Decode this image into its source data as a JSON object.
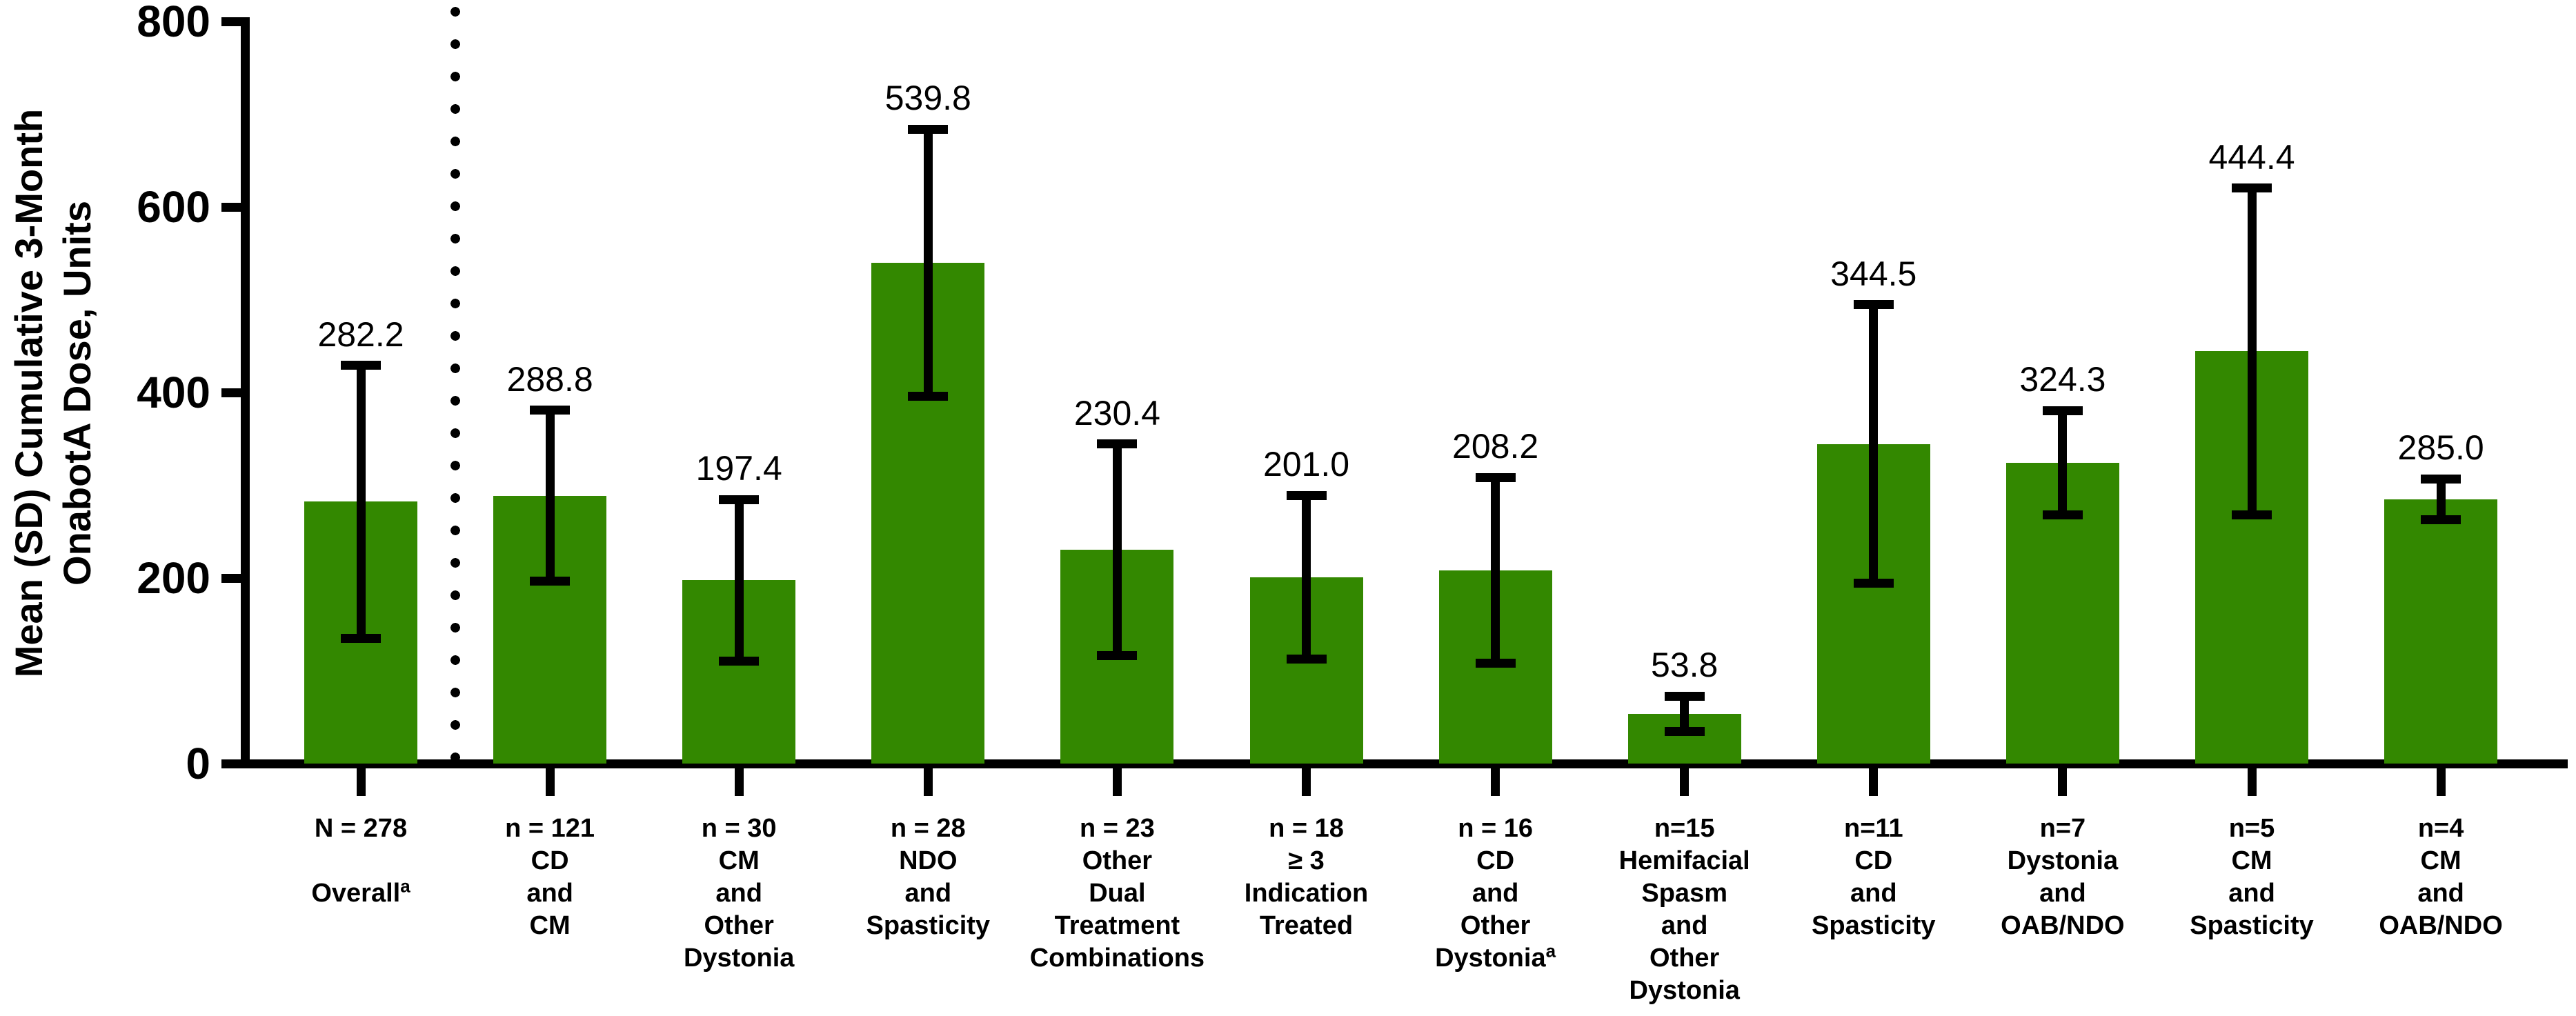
{
  "figure": {
    "background_color": "#ffffff"
  },
  "chart_data": {
    "type": "bar",
    "title": "",
    "ylabel": "Mean (SD) Cumulative 3-Month OnabotA Dose, Units",
    "ylabel_lines": [
      "Mean (SD) Cumulative 3-Month",
      "OnabotA Dose, Units"
    ],
    "xlabel": "",
    "ylim": [
      0,
      800
    ],
    "yticks": [
      "800",
      "600",
      "400",
      "200",
      "0"
    ],
    "ytick_values": [
      800,
      600,
      400,
      200,
      0
    ],
    "grid": false,
    "legend": false,
    "bar_color": "#338800",
    "axis_color": "#000000",
    "error_bar_style": "mean plus/minus SD, black whiskers with caps",
    "separator_note": "dotted vertical line between Overall bar and subgroup bars",
    "groups": [
      {
        "n_label": "N = 278",
        "label_lines": [
          "",
          "Overall"
        ],
        "superscript": "a",
        "mean": 282.2,
        "value_label": "282.2",
        "sd_est": 147
      },
      {
        "n_label": "n = 121",
        "label_lines": [
          "CD",
          "and",
          "CM"
        ],
        "superscript": "",
        "mean": 288.8,
        "value_label": "288.8",
        "sd_est": 92
      },
      {
        "n_label": "n = 30",
        "label_lines": [
          "CM",
          "and",
          "Other",
          "Dystonia"
        ],
        "superscript": "",
        "mean": 197.4,
        "value_label": "197.4",
        "sd_est": 87
      },
      {
        "n_label": "n = 28",
        "label_lines": [
          "NDO",
          "and",
          "Spasticity"
        ],
        "superscript": "",
        "mean": 539.8,
        "value_label": "539.8",
        "sd_est": 144
      },
      {
        "n_label": "n = 23",
        "label_lines": [
          "Other",
          "Dual",
          "Treatment",
          "Combinations"
        ],
        "superscript": "",
        "mean": 230.4,
        "value_label": "230.4",
        "sd_est": 114
      },
      {
        "n_label": "n = 18",
        "label_lines": [
          "≥ 3",
          "Indication",
          "Treated"
        ],
        "superscript": "",
        "mean": 201.0,
        "value_label": "201.0",
        "sd_est": 88
      },
      {
        "n_label": "n = 16",
        "label_lines": [
          "CD",
          "and",
          "Other",
          "Dystonia"
        ],
        "superscript": "a",
        "mean": 208.2,
        "value_label": "208.2",
        "sd_est": 100
      },
      {
        "n_label": "n=15",
        "label_lines": [
          "Hemifacial",
          "Spasm",
          "and",
          "Other",
          "Dystonia"
        ],
        "superscript": "",
        "mean": 53.8,
        "value_label": "53.8",
        "sd_est": 19
      },
      {
        "n_label": "n=11",
        "label_lines": [
          "CD",
          "and",
          "Spasticity"
        ],
        "superscript": "",
        "mean": 344.5,
        "value_label": "344.5",
        "sd_est": 150
      },
      {
        "n_label": "n=7",
        "label_lines": [
          "Dystonia",
          "and",
          "OAB/NDO"
        ],
        "superscript": "",
        "mean": 324.3,
        "value_label": "324.3",
        "sd_est": 56
      },
      {
        "n_label": "n=5",
        "label_lines": [
          "CM",
          "and",
          "Spasticity"
        ],
        "superscript": "",
        "mean": 444.4,
        "value_label": "444.4",
        "sd_est": 176
      },
      {
        "n_label": "n=4",
        "label_lines": [
          "CM",
          "and",
          "OAB/NDO"
        ],
        "superscript": "",
        "mean": 285.0,
        "value_label": "285.0",
        "sd_est": 22
      }
    ]
  }
}
